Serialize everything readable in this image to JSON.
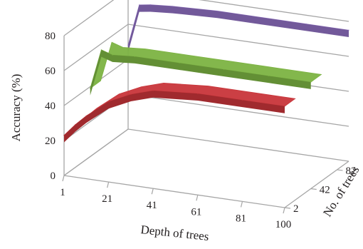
{
  "chart_data": {
    "type": "surface-3d",
    "xlabel": "Depth of trees",
    "ylabel": "Accuracy (%)",
    "zlabel": "No. of trees",
    "x_ticks": [
      "1",
      "21",
      "41",
      "61",
      "81",
      "100"
    ],
    "y_ticks": [
      "0",
      "20",
      "40",
      "60",
      "80"
    ],
    "z_ticks": [
      "2",
      "42",
      "82"
    ],
    "ylim": [
      0,
      80
    ],
    "xlim": [
      1,
      100
    ],
    "zlim": [
      2,
      100
    ],
    "grid": true,
    "surfaces": [
      {
        "color": "#c8353a",
        "no_of_trees": 2,
        "depth": [
          1,
          6,
          11,
          21,
          31,
          41,
          61,
          81,
          100
        ],
        "accuracy": [
          23,
          30,
          36,
          46,
          52,
          56,
          58,
          58,
          58
        ]
      },
      {
        "color": "#7cb342",
        "no_of_trees": 42,
        "depth": [
          1,
          6,
          11,
          21,
          41,
          61,
          81,
          100
        ],
        "accuracy": [
          39,
          62,
          60,
          61,
          61,
          61,
          61,
          61
        ]
      },
      {
        "color": "#8e6fc0",
        "no_of_trees": 100,
        "depth": [
          1,
          6,
          11,
          21,
          41,
          61,
          81,
          100
        ],
        "accuracy": [
          48,
          72,
          73,
          74,
          75,
          75,
          75,
          75
        ]
      }
    ],
    "colors": {
      "axis": "#a6a6a6",
      "grid": "#a6a6a6",
      "text": "#231f20"
    }
  }
}
